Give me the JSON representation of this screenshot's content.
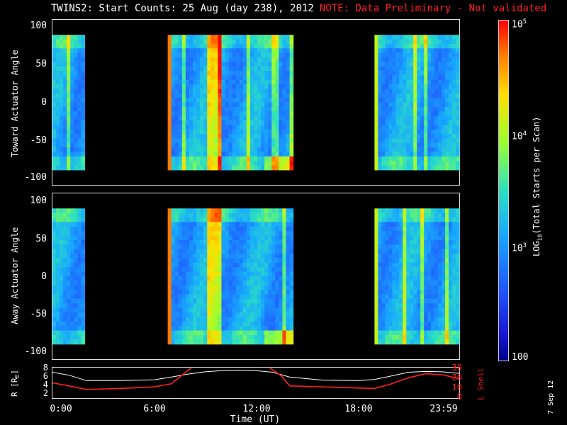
{
  "title": {
    "main": "TWINS2: Start Counts: 25 Aug (day 238), 2012",
    "note": "NOTE: Data Preliminary - Not validated"
  },
  "colors": {
    "note": "#ff2020",
    "r_line": "#ffffff",
    "l_line": "#ff2020"
  },
  "chart_data": [
    {
      "type": "heatmap",
      "name": "toward",
      "ylabel": "Toward Actuator Angle",
      "ylim": [
        -110,
        110
      ],
      "yticks": [
        "100",
        "50",
        "0",
        "-50",
        "-100"
      ],
      "data_blocks_hours": [
        [
          0.0,
          1.9
        ],
        [
          6.8,
          14.2
        ],
        [
          19.0,
          24.0
        ]
      ]
    },
    {
      "type": "heatmap",
      "name": "away",
      "ylabel": "Away Actuator Angle",
      "ylim": [
        -110,
        110
      ],
      "yticks": [
        "100",
        "50",
        "0",
        "-50",
        "-100"
      ],
      "data_blocks_hours": [
        [
          0.0,
          1.9
        ],
        [
          6.8,
          14.2
        ],
        [
          19.0,
          24.0
        ]
      ]
    },
    {
      "type": "line",
      "name": "orbit",
      "xlabel": "Time (UT)",
      "xticks": [
        "0:00",
        "6:00",
        "12:00",
        "18:00",
        "23:59"
      ],
      "ylabel_left": "R [R",
      "ylabel_left_sub": "E",
      "ylabel_right": "L Shell",
      "yticks_left": [
        "8",
        "6",
        "4",
        "2"
      ],
      "yticks_right": [
        "30",
        "20",
        "10",
        "0"
      ],
      "ylim_left": [
        0,
        8
      ],
      "ylim_right": [
        0,
        30
      ],
      "series": [
        {
          "x": [
            0,
            1,
            2,
            4,
            6,
            7,
            8,
            9,
            10,
            11,
            12,
            13,
            14,
            16,
            18,
            19,
            20,
            21,
            22,
            23,
            24
          ],
          "y": [
            6.8,
            6.0,
            4.6,
            4.6,
            4.8,
            5.5,
            6.3,
            6.9,
            7.2,
            7.3,
            7.2,
            6.8,
            5.5,
            4.7,
            4.6,
            4.9,
            5.8,
            6.8,
            7.0,
            6.9,
            6.5
          ]
        },
        {
          "x": [
            0,
            1,
            2,
            4,
            6,
            7,
            7.6,
            8.2
          ],
          "y": [
            15,
            12,
            8.5,
            9.5,
            11,
            14,
            22,
            30
          ]
        },
        {
          "x": [
            12.8,
            13.5,
            14,
            16,
            18,
            19,
            20,
            21,
            22,
            23,
            24
          ],
          "y": [
            30,
            22,
            12,
            11,
            10,
            9.5,
            14,
            20,
            24,
            23,
            19
          ]
        }
      ]
    }
  ],
  "colorbar": {
    "ticks": [
      "10",
      "10",
      "10",
      "100"
    ],
    "exponents": [
      "5",
      "4",
      "3"
    ],
    "label_pre": "LOG",
    "label_sub": "10",
    "label_post": "(Total Starts per Scan)"
  },
  "datestamp": "7 Sep 12"
}
